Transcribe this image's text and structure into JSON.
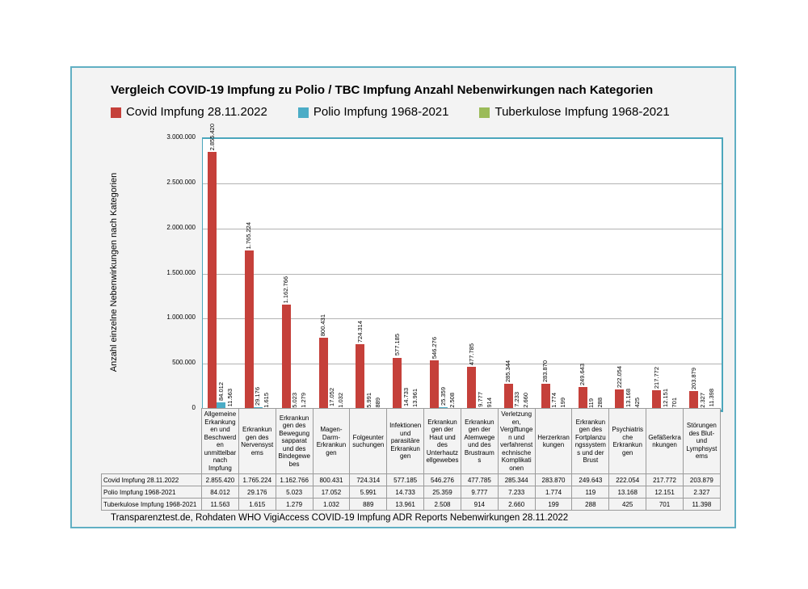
{
  "footer": "Transparenztest.de, Rohdaten WHO VigiAccess COVID-19 Impfung ADR Reports Nebenwirkungen 28.11.2022",
  "colors": {
    "covid_red": "#c5403a",
    "polio_teal": "#4bacc6",
    "tbc_green": "#9bbb59",
    "plot_border_teal": "#4ba6bc",
    "panel_border_teal": "#61afc3",
    "gridline_gray": "#b3b3b3",
    "panel_background": "#f3f3f3"
  },
  "chart_data": {
    "type": "bar",
    "title": "Vergleich COVID-19 Impfung zu Polio / TBC Impfung Anzahl Nebenwirkungen nach Kategorien",
    "ylabel": "Anzahl einzelne Nebenwirkungen nach Kategorien",
    "xlabel": "",
    "ylim": [
      0,
      3000000
    ],
    "ytick_step": 500000,
    "ytick_labels": [
      "0",
      "500.000",
      "1.000.000",
      "1.500.000",
      "2.000.000",
      "2.500.000",
      "3.000.000"
    ],
    "grid": true,
    "legend_position": "top",
    "categories": [
      "Allgemeine Erkankungen und Beschwerden unmittelbar nach Impfung",
      "Erkrankungen des Nervensystems",
      "Erkrankungen des Bewegungsapparat und des Bindegewebes",
      "Magen-Darm-Erkrankungen",
      "Folgeuntersuchungen",
      "Infektionen und parasitäre Erkrankungen",
      "Erkrankungen der Haut und des Unterhautzellgewebes",
      "Erkrankungen der Atemwege und des Brustraums",
      "Verletzungen, Vergiftungen und verfahrenstechnische Komplikationen",
      "Herzerkrankungen",
      "Erkrankungen des Fortplanzungssystems und der Brust",
      "Psychiatrische Erkrankungen",
      "Gefäßerkrankungen",
      "Störungen des Blut- und Lymphsystems"
    ],
    "series": [
      {
        "key": "covid",
        "name": "Covid Impfung 28.11.2022",
        "color": "#c5403a",
        "values": [
          2855420,
          1765224,
          1162766,
          800431,
          724314,
          577185,
          546276,
          477785,
          285344,
          283870,
          249643,
          222054,
          217772,
          203879
        ],
        "labels": [
          "2.855.420",
          "1.765.224",
          "1.162.766",
          "800.431",
          "724.314",
          "577.185",
          "546.276",
          "477.785",
          "285.344",
          "283.870",
          "249.643",
          "222.054",
          "217.772",
          "203.879"
        ]
      },
      {
        "key": "polio",
        "name": "Polio Impfung 1968-2021",
        "color": "#4bacc6",
        "values": [
          84012,
          29176,
          5023,
          17052,
          5991,
          14733,
          25359,
          9777,
          7233,
          1774,
          119,
          13168,
          12151,
          2327
        ],
        "labels": [
          "84.012",
          "29.176",
          "5.023",
          "17.052",
          "5.991",
          "14.733",
          "25.359",
          "9.777",
          "7.233",
          "1.774",
          "119",
          "13.168",
          "12.151",
          "2.327"
        ]
      },
      {
        "key": "tbc",
        "name": "Tuberkulose Impfung 1968-2021",
        "color": "#9bbb59",
        "values": [
          11563,
          1615,
          1279,
          1032,
          889,
          13961,
          2508,
          914,
          2660,
          199,
          288,
          425,
          701,
          11398
        ],
        "labels": [
          "11.563",
          "1.615",
          "1.279",
          "1.032",
          "889",
          "13.961",
          "2.508",
          "914",
          "2.660",
          "199",
          "288",
          "425",
          "701",
          "11.398"
        ]
      }
    ]
  }
}
